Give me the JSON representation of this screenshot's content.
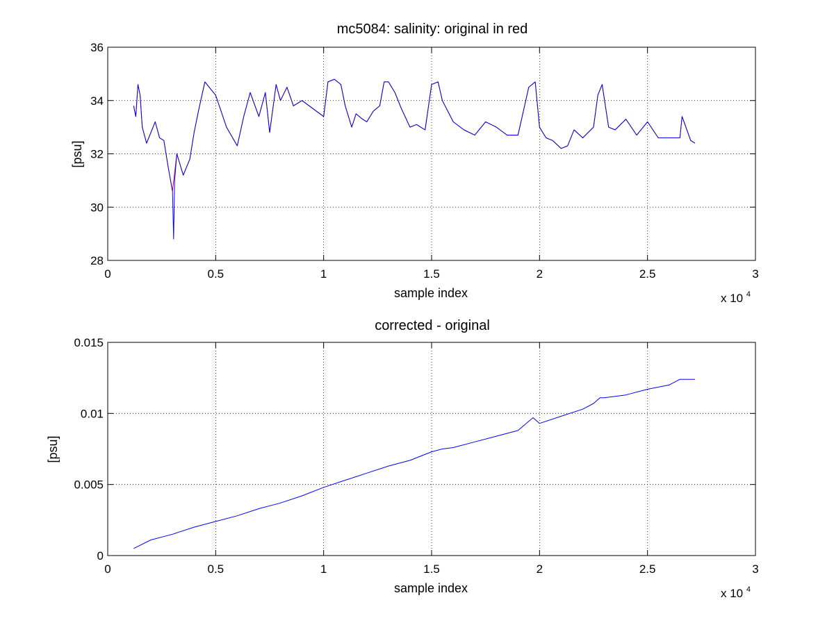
{
  "chart_data": [
    {
      "type": "line",
      "title": "mc5084: salinity: original in red",
      "xlabel": "sample index",
      "ylabel": "[psu]",
      "x_multiplier": {
        "base": "x 10",
        "exponent": "4"
      },
      "xlim": [
        0,
        3
      ],
      "ylim": [
        28,
        36
      ],
      "x_ticks": [
        0,
        0.5,
        1,
        1.5,
        2,
        2.5,
        3
      ],
      "y_ticks": [
        28,
        30,
        32,
        34,
        36
      ],
      "x_tick_labels": [
        "0",
        "0.5",
        "1",
        "1.5",
        "2",
        "2.5",
        "3"
      ],
      "y_tick_labels": [
        "28",
        "30",
        "32",
        "34",
        "36"
      ],
      "grid": true,
      "legend": "none",
      "series": [
        {
          "color": "#ff0000",
          "x": [
            0.12,
            0.13,
            0.14,
            0.15,
            0.16,
            0.18,
            0.2,
            0.22,
            0.24,
            0.26,
            0.28,
            0.3,
            0.32,
            0.35,
            0.38,
            0.4,
            0.42,
            0.45,
            0.47,
            0.5,
            0.55,
            0.6,
            0.63,
            0.66,
            0.7,
            0.73,
            0.75,
            0.78,
            0.8,
            0.83,
            0.86,
            0.9,
            0.95,
            1.0,
            1.02,
            1.05,
            1.08,
            1.1,
            1.13,
            1.15,
            1.18,
            1.2,
            1.23,
            1.26,
            1.28,
            1.3,
            1.33,
            1.36,
            1.4,
            1.43,
            1.47,
            1.5,
            1.53,
            1.55,
            1.6,
            1.65,
            1.7,
            1.75,
            1.8,
            1.85,
            1.9,
            1.95,
            1.98,
            2.0,
            2.03,
            2.06,
            2.1,
            2.13,
            2.16,
            2.2,
            2.25,
            2.27,
            2.29,
            2.32,
            2.35,
            2.4,
            2.45,
            2.5,
            2.55,
            2.6,
            2.65,
            2.66,
            2.7,
            2.72
          ],
          "values": [
            33.8,
            33.4,
            34.6,
            34.2,
            33.0,
            32.4,
            32.8,
            33.2,
            32.6,
            32.5,
            31.5,
            30.6,
            32.0,
            31.2,
            31.8,
            32.8,
            33.6,
            34.7,
            34.5,
            34.2,
            33.0,
            32.3,
            33.4,
            34.3,
            33.4,
            34.3,
            32.8,
            34.6,
            34.0,
            34.5,
            33.8,
            34.0,
            33.7,
            33.4,
            34.7,
            34.8,
            34.6,
            33.8,
            33.0,
            33.5,
            33.3,
            33.2,
            33.6,
            33.8,
            34.7,
            34.7,
            34.3,
            33.7,
            33.0,
            33.1,
            32.9,
            34.6,
            34.7,
            34.0,
            33.2,
            32.9,
            32.7,
            33.2,
            33.0,
            32.7,
            32.7,
            34.5,
            34.7,
            33.0,
            32.6,
            32.5,
            32.2,
            32.3,
            32.9,
            32.6,
            33.0,
            34.2,
            34.6,
            33.0,
            32.9,
            33.3,
            32.7,
            33.2,
            32.6,
            32.6,
            32.6,
            33.4,
            32.5,
            32.4
          ]
        },
        {
          "color": "#0000ff",
          "x": [
            0.12,
            0.13,
            0.14,
            0.15,
            0.16,
            0.18,
            0.2,
            0.22,
            0.24,
            0.26,
            0.28,
            0.3,
            0.305,
            0.31,
            0.32,
            0.35,
            0.38,
            0.4,
            0.42,
            0.45,
            0.47,
            0.5,
            0.55,
            0.6,
            0.63,
            0.66,
            0.7,
            0.73,
            0.75,
            0.78,
            0.8,
            0.83,
            0.86,
            0.9,
            0.95,
            1.0,
            1.02,
            1.05,
            1.08,
            1.1,
            1.13,
            1.15,
            1.18,
            1.2,
            1.23,
            1.26,
            1.28,
            1.3,
            1.33,
            1.36,
            1.4,
            1.43,
            1.47,
            1.5,
            1.53,
            1.55,
            1.6,
            1.65,
            1.7,
            1.75,
            1.8,
            1.85,
            1.9,
            1.95,
            1.98,
            2.0,
            2.03,
            2.06,
            2.1,
            2.13,
            2.16,
            2.2,
            2.25,
            2.27,
            2.29,
            2.32,
            2.35,
            2.4,
            2.45,
            2.5,
            2.55,
            2.6,
            2.65,
            2.66,
            2.7,
            2.72
          ],
          "values": [
            33.8,
            33.4,
            34.6,
            34.2,
            33.0,
            32.4,
            32.8,
            33.2,
            32.6,
            32.5,
            31.5,
            30.6,
            28.8,
            31.0,
            32.0,
            31.2,
            31.8,
            32.8,
            33.6,
            34.7,
            34.5,
            34.2,
            33.0,
            32.3,
            33.4,
            34.3,
            33.4,
            34.3,
            32.8,
            34.6,
            34.0,
            34.5,
            33.8,
            34.0,
            33.7,
            33.4,
            34.7,
            34.8,
            34.6,
            33.8,
            33.0,
            33.5,
            33.3,
            33.2,
            33.6,
            33.8,
            34.7,
            34.7,
            34.3,
            33.7,
            33.0,
            33.1,
            32.9,
            34.6,
            34.7,
            34.0,
            33.2,
            32.9,
            32.7,
            33.2,
            33.0,
            32.7,
            32.7,
            34.5,
            34.7,
            33.0,
            32.6,
            32.5,
            32.2,
            32.3,
            32.9,
            32.6,
            33.0,
            34.2,
            34.6,
            33.0,
            32.9,
            33.3,
            32.7,
            33.2,
            32.6,
            32.6,
            32.6,
            33.4,
            32.5,
            32.4
          ]
        }
      ]
    },
    {
      "type": "line",
      "title": "corrected - original",
      "xlabel": "sample index",
      "ylabel": "[psu]",
      "x_multiplier": {
        "base": "x 10",
        "exponent": "4"
      },
      "xlim": [
        0,
        3
      ],
      "ylim": [
        0,
        0.015
      ],
      "x_ticks": [
        0,
        0.5,
        1,
        1.5,
        2,
        2.5,
        3
      ],
      "y_ticks": [
        0,
        0.005,
        0.01,
        0.015
      ],
      "x_tick_labels": [
        "0",
        "0.5",
        "1",
        "1.5",
        "2",
        "2.5",
        "3"
      ],
      "y_tick_labels": [
        "0",
        "0.005",
        "0.01",
        "0.015"
      ],
      "grid": true,
      "legend": "none",
      "series": [
        {
          "color": "#0000ff",
          "x": [
            0.12,
            0.2,
            0.3,
            0.4,
            0.5,
            0.6,
            0.7,
            0.8,
            0.9,
            1.0,
            1.1,
            1.2,
            1.3,
            1.4,
            1.5,
            1.55,
            1.6,
            1.7,
            1.8,
            1.9,
            1.97,
            2.0,
            2.1,
            2.2,
            2.25,
            2.28,
            2.3,
            2.4,
            2.5,
            2.6,
            2.65,
            2.72
          ],
          "values": [
            0.0005,
            0.0011,
            0.0015,
            0.002,
            0.0024,
            0.0028,
            0.0033,
            0.0037,
            0.0042,
            0.0048,
            0.0053,
            0.0058,
            0.0063,
            0.0067,
            0.0073,
            0.0075,
            0.0076,
            0.008,
            0.0084,
            0.0088,
            0.0097,
            0.0093,
            0.0098,
            0.0103,
            0.0107,
            0.0111,
            0.0111,
            0.0113,
            0.0117,
            0.012,
            0.0124,
            0.0124
          ]
        }
      ]
    }
  ]
}
